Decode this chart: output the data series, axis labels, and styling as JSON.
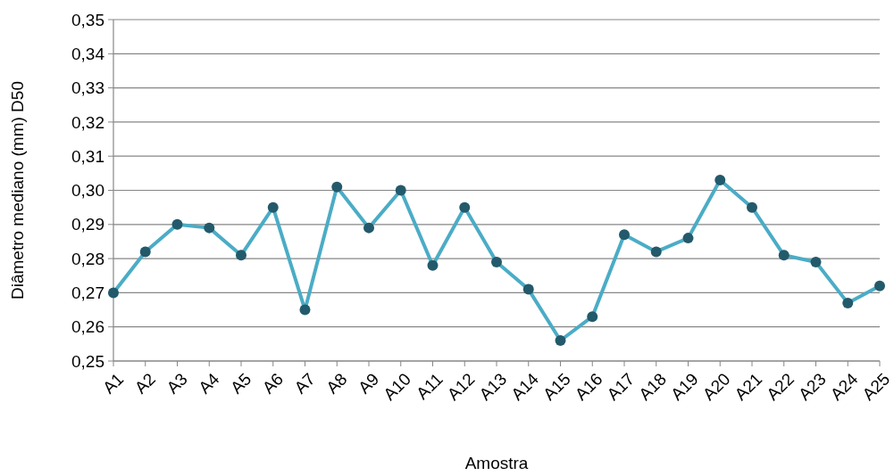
{
  "chart_data": {
    "type": "line",
    "xlabel": "Amostra",
    "ylabel": "Diâmetro mediano (mm) D50",
    "categories": [
      "A1",
      "A2",
      "A3",
      "A4",
      "A5",
      "A6",
      "A7",
      "A8",
      "A9",
      "A10",
      "A11",
      "A12",
      "A13",
      "A14",
      "A15",
      "A16",
      "A17",
      "A18",
      "A19",
      "A20",
      "A21",
      "A22",
      "A23",
      "A24",
      "A25"
    ],
    "series": [
      {
        "color": "#4bacc6",
        "values": [
          0.27,
          0.282,
          0.29,
          0.289,
          0.281,
          0.295,
          0.265,
          0.301,
          0.289,
          0.3,
          0.278,
          0.295,
          0.279,
          0.271,
          0.256,
          0.263,
          0.287,
          0.282,
          0.286,
          0.303,
          0.295,
          0.281,
          0.279,
          0.267,
          0.272
        ]
      }
    ],
    "ylim": [
      0.25,
      0.35
    ],
    "yticks": [
      {
        "value": 0.25,
        "label": "0,25"
      },
      {
        "value": 0.26,
        "label": "0,26"
      },
      {
        "value": 0.27,
        "label": "0,27"
      },
      {
        "value": 0.28,
        "label": "0,28"
      },
      {
        "value": 0.29,
        "label": "0,29"
      },
      {
        "value": 0.3,
        "label": "0,30"
      },
      {
        "value": 0.31,
        "label": "0,31"
      },
      {
        "value": 0.32,
        "label": "0,32"
      },
      {
        "value": 0.33,
        "label": "0,33"
      },
      {
        "value": 0.34,
        "label": "0,34"
      },
      {
        "value": 0.35,
        "label": "0,35"
      }
    ],
    "grid": "y",
    "marker": "circle",
    "line_style": "solid"
  }
}
